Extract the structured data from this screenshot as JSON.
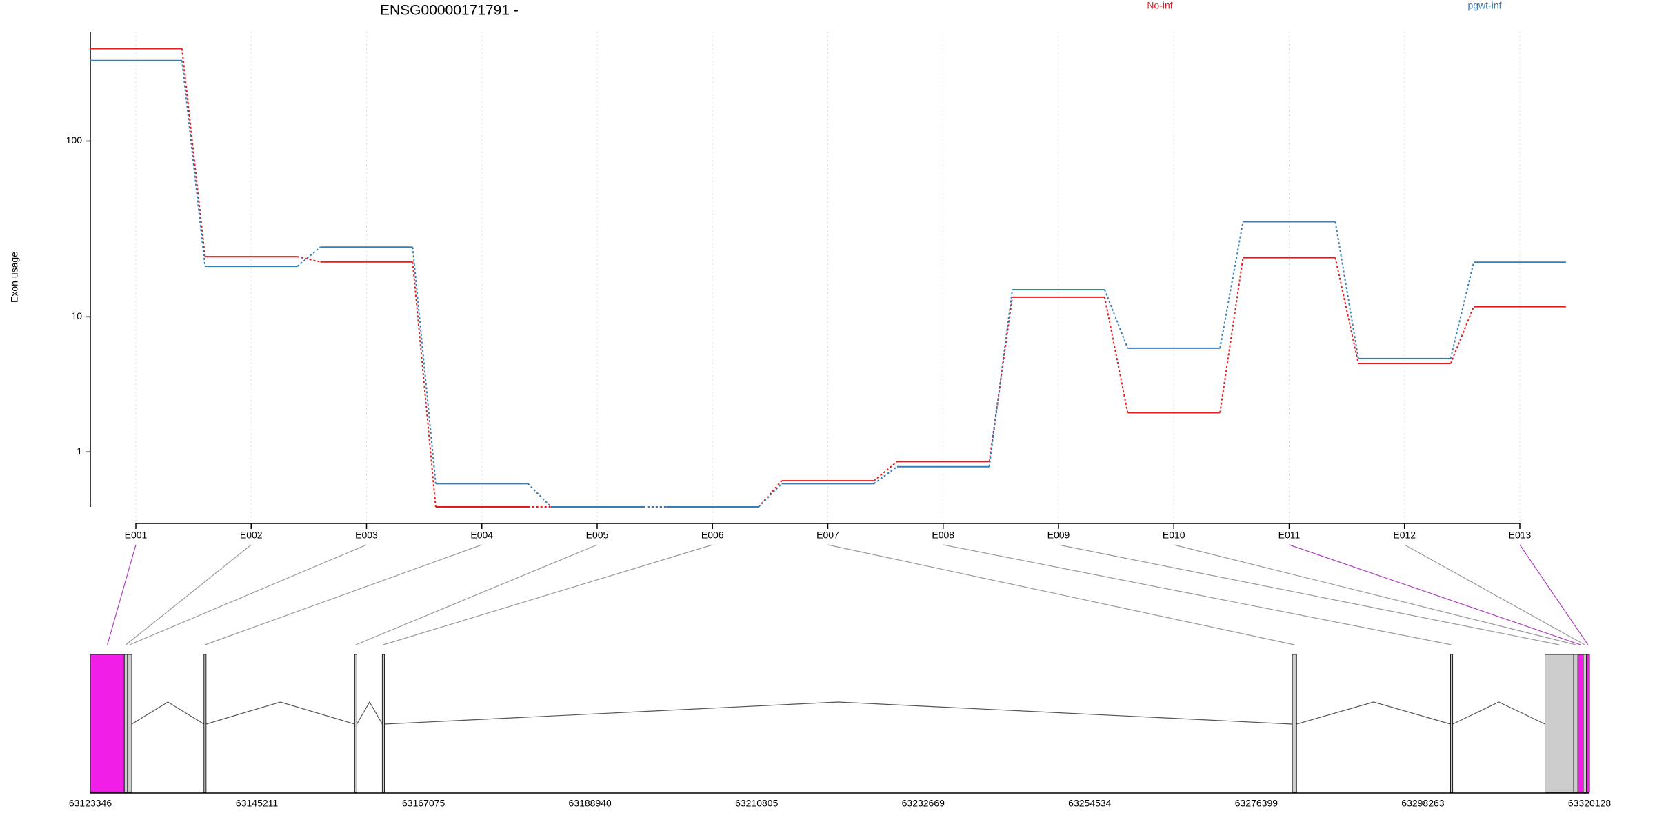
{
  "chart_data": [
    {
      "type": "line",
      "title": "ENSG00000171791 -",
      "y_label": "Exon usage",
      "y_transform": "log1p",
      "categories": [
        "E001",
        "E002",
        "E003",
        "E004",
        "E005",
        "E006",
        "E007",
        "E008",
        "E009",
        "E010",
        "E011",
        "E012",
        "E013"
      ],
      "series": [
        {
          "name": "No-inf",
          "color": "#e41a1c",
          "values": [
            323,
            22.5,
            21,
            0,
            0,
            0,
            0.39,
            0.77,
            13.1,
            2.28,
            22.2,
            5.1,
            11.5
          ]
        },
        {
          "name": "pgwt-inf",
          "color": "#377eb8",
          "values": [
            278,
            19.8,
            25.5,
            0.34,
            0,
            0,
            0.34,
            0.66,
            14.5,
            6.4,
            35.5,
            5.5,
            20.9
          ]
        }
      ],
      "ylim": [
        0,
        400
      ],
      "yticks": [
        1,
        10,
        100
      ],
      "grid": true
    },
    {
      "type": "gene_model",
      "xlim": [
        63123346,
        63320128
      ],
      "xticks": [
        63123346,
        63145211,
        63167075,
        63188940,
        63210805,
        63232669,
        63254534,
        63276399,
        63298263,
        63320128
      ],
      "highlight_color": "#f01ee6",
      "exon_color": "#cccccc",
      "exons": [
        {
          "start": 63123346,
          "end": 63127806,
          "highlight": true
        },
        {
          "start": 63127806,
          "end": 63128224,
          "highlight": false
        },
        {
          "start": 63128224,
          "end": 63128781,
          "highlight": false
        },
        {
          "start": 63138258,
          "end": 63138537,
          "highlight": false
        },
        {
          "start": 63158047,
          "end": 63158325,
          "highlight": false
        },
        {
          "start": 63161670,
          "end": 63161949,
          "highlight": false
        },
        {
          "start": 63281123,
          "end": 63281680,
          "highlight": false
        },
        {
          "start": 63301889,
          "end": 63302168,
          "highlight": false
        },
        {
          "start": 63314292,
          "end": 63318055,
          "highlight": false
        },
        {
          "start": 63318055,
          "end": 63318612,
          "highlight": false
        },
        {
          "start": 63318612,
          "end": 63319309,
          "highlight": true
        },
        {
          "start": 63319309,
          "end": 63319727,
          "highlight": false
        },
        {
          "start": 63319727,
          "end": 63320128,
          "highlight": true
        }
      ]
    }
  ]
}
